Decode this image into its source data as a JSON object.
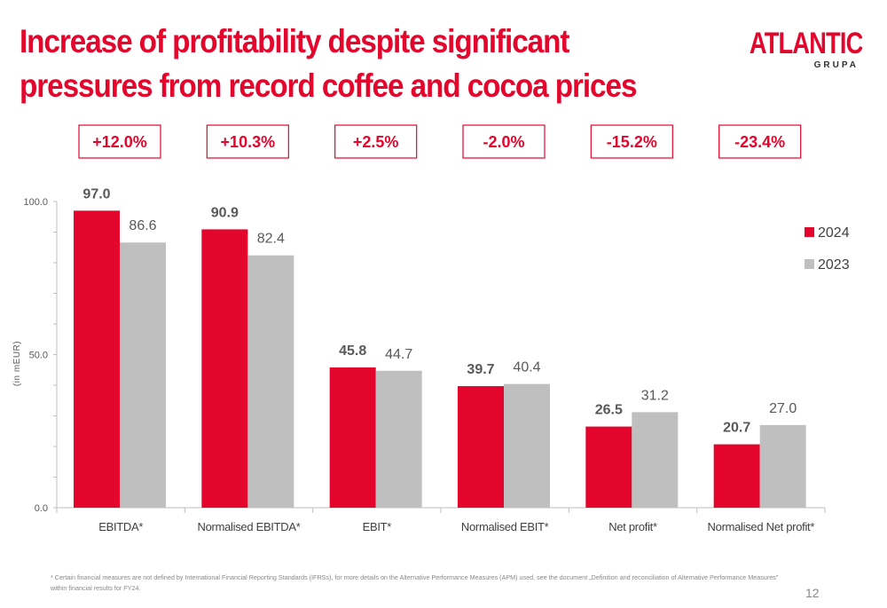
{
  "title": "Increase of profitability despite significant pressures from record coffee and cocoa prices",
  "logo": {
    "main": "ATLANTIC",
    "sub": "GRUPA"
  },
  "footnote": "* Certain financial measures are not defined by International Financial Reporting Standards (IFRSs), for more details on the Alternative Performance Measures (APM) used, see the document „Definition and reconciliation of Alternative Performance Measures\" within financial results for FY24.",
  "page_number": "12",
  "colors": {
    "accent": "#e3052b",
    "series_2023": "#bfbfbf"
  },
  "chart_data": {
    "type": "bar",
    "categories": [
      "EBITDA*",
      "Normalised EBITDA*",
      "EBIT*",
      "Normalised EBIT*",
      "Net profit*",
      "Normalised Net profit*"
    ],
    "series": [
      {
        "name": "2024",
        "values": [
          97.0,
          90.9,
          45.8,
          39.7,
          26.5,
          20.7
        ],
        "labels": [
          "97.0",
          "90.9",
          "45.8",
          "39.7",
          "26.5",
          "20.7"
        ],
        "color": "#e3052b"
      },
      {
        "name": "2023",
        "values": [
          86.6,
          82.4,
          44.7,
          40.4,
          31.2,
          27.0
        ],
        "labels": [
          "86.6",
          "82.4",
          "44.7",
          "40.4",
          "31.2",
          "27.0"
        ],
        "color": "#bfbfbf"
      }
    ],
    "changes": [
      "+12.0%",
      "+10.3%",
      "+2.5%",
      "-2.0%",
      "-15.2%",
      "-23.4%"
    ],
    "ylabel": "(in mEUR)",
    "ylim": [
      0,
      100
    ],
    "yticks": [
      "0.0",
      "50.0",
      "100.0"
    ],
    "legend_position": "right",
    "grid": false
  }
}
